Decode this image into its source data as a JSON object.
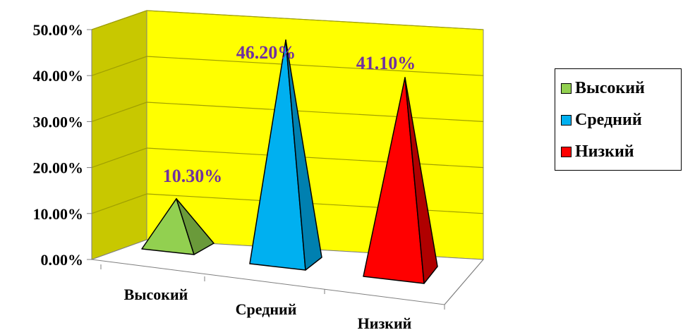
{
  "chart_data": {
    "type": "bar",
    "subtype": "3d-pyramid",
    "categories": [
      "Высокий",
      "Средний",
      "Низкий"
    ],
    "values": [
      10.3,
      46.2,
      41.1
    ],
    "data_labels": [
      "10.30%",
      "46.20%",
      "41.10%"
    ],
    "y_ticks": [
      "0.00%",
      "10.00%",
      "20.00%",
      "30.00%",
      "40.00%",
      "50.00%"
    ],
    "ylim": [
      0,
      50
    ],
    "grid": true,
    "legend_position": "right",
    "legend": [
      "Высокий",
      "Средний",
      "Низкий"
    ],
    "colors": {
      "wall": "#ffff00",
      "side_wall": "#c8c800",
      "grid": "#a0a000",
      "label_text": "#7030a0",
      "series": [
        "#92d050",
        "#00b0f0",
        "#ff0000"
      ],
      "series_dark": [
        "#6a9a3a",
        "#0080b0",
        "#b00000"
      ]
    }
  }
}
